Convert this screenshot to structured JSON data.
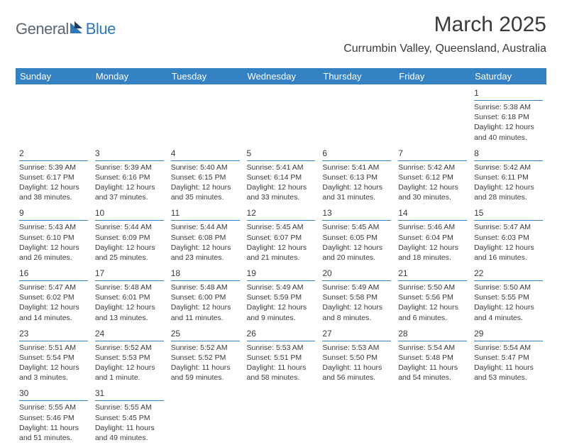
{
  "logo": {
    "part1": "General",
    "part2": "Blue"
  },
  "title": "March 2025",
  "subtitle": "Currumbin Valley, Queensland, Australia",
  "colors": {
    "header_bg": "#3481c4",
    "header_text": "#ffffff",
    "text": "#3a3a3a",
    "logo_gray": "#5b6770",
    "logo_blue": "#2f77bb",
    "rule": "#3481c4",
    "background": "#ffffff"
  },
  "typography": {
    "title_fontsize": 30,
    "subtitle_fontsize": 16,
    "header_fontsize": 13,
    "cell_fontsize": 10.5,
    "daynum_fontsize": 12
  },
  "weekdays": [
    "Sunday",
    "Monday",
    "Tuesday",
    "Wednesday",
    "Thursday",
    "Friday",
    "Saturday"
  ],
  "weeks": [
    [
      {
        "n": "",
        "sr": "",
        "ss": "",
        "dl": ""
      },
      {
        "n": "",
        "sr": "",
        "ss": "",
        "dl": ""
      },
      {
        "n": "",
        "sr": "",
        "ss": "",
        "dl": ""
      },
      {
        "n": "",
        "sr": "",
        "ss": "",
        "dl": ""
      },
      {
        "n": "",
        "sr": "",
        "ss": "",
        "dl": ""
      },
      {
        "n": "",
        "sr": "",
        "ss": "",
        "dl": ""
      },
      {
        "n": "1",
        "sr": "Sunrise: 5:38 AM",
        "ss": "Sunset: 6:18 PM",
        "dl": "Daylight: 12 hours and 40 minutes."
      }
    ],
    [
      {
        "n": "2",
        "sr": "Sunrise: 5:39 AM",
        "ss": "Sunset: 6:17 PM",
        "dl": "Daylight: 12 hours and 38 minutes."
      },
      {
        "n": "3",
        "sr": "Sunrise: 5:39 AM",
        "ss": "Sunset: 6:16 PM",
        "dl": "Daylight: 12 hours and 37 minutes."
      },
      {
        "n": "4",
        "sr": "Sunrise: 5:40 AM",
        "ss": "Sunset: 6:15 PM",
        "dl": "Daylight: 12 hours and 35 minutes."
      },
      {
        "n": "5",
        "sr": "Sunrise: 5:41 AM",
        "ss": "Sunset: 6:14 PM",
        "dl": "Daylight: 12 hours and 33 minutes."
      },
      {
        "n": "6",
        "sr": "Sunrise: 5:41 AM",
        "ss": "Sunset: 6:13 PM",
        "dl": "Daylight: 12 hours and 31 minutes."
      },
      {
        "n": "7",
        "sr": "Sunrise: 5:42 AM",
        "ss": "Sunset: 6:12 PM",
        "dl": "Daylight: 12 hours and 30 minutes."
      },
      {
        "n": "8",
        "sr": "Sunrise: 5:42 AM",
        "ss": "Sunset: 6:11 PM",
        "dl": "Daylight: 12 hours and 28 minutes."
      }
    ],
    [
      {
        "n": "9",
        "sr": "Sunrise: 5:43 AM",
        "ss": "Sunset: 6:10 PM",
        "dl": "Daylight: 12 hours and 26 minutes."
      },
      {
        "n": "10",
        "sr": "Sunrise: 5:44 AM",
        "ss": "Sunset: 6:09 PM",
        "dl": "Daylight: 12 hours and 25 minutes."
      },
      {
        "n": "11",
        "sr": "Sunrise: 5:44 AM",
        "ss": "Sunset: 6:08 PM",
        "dl": "Daylight: 12 hours and 23 minutes."
      },
      {
        "n": "12",
        "sr": "Sunrise: 5:45 AM",
        "ss": "Sunset: 6:07 PM",
        "dl": "Daylight: 12 hours and 21 minutes."
      },
      {
        "n": "13",
        "sr": "Sunrise: 5:45 AM",
        "ss": "Sunset: 6:05 PM",
        "dl": "Daylight: 12 hours and 20 minutes."
      },
      {
        "n": "14",
        "sr": "Sunrise: 5:46 AM",
        "ss": "Sunset: 6:04 PM",
        "dl": "Daylight: 12 hours and 18 minutes."
      },
      {
        "n": "15",
        "sr": "Sunrise: 5:47 AM",
        "ss": "Sunset: 6:03 PM",
        "dl": "Daylight: 12 hours and 16 minutes."
      }
    ],
    [
      {
        "n": "16",
        "sr": "Sunrise: 5:47 AM",
        "ss": "Sunset: 6:02 PM",
        "dl": "Daylight: 12 hours and 14 minutes."
      },
      {
        "n": "17",
        "sr": "Sunrise: 5:48 AM",
        "ss": "Sunset: 6:01 PM",
        "dl": "Daylight: 12 hours and 13 minutes."
      },
      {
        "n": "18",
        "sr": "Sunrise: 5:48 AM",
        "ss": "Sunset: 6:00 PM",
        "dl": "Daylight: 12 hours and 11 minutes."
      },
      {
        "n": "19",
        "sr": "Sunrise: 5:49 AM",
        "ss": "Sunset: 5:59 PM",
        "dl": "Daylight: 12 hours and 9 minutes."
      },
      {
        "n": "20",
        "sr": "Sunrise: 5:49 AM",
        "ss": "Sunset: 5:58 PM",
        "dl": "Daylight: 12 hours and 8 minutes."
      },
      {
        "n": "21",
        "sr": "Sunrise: 5:50 AM",
        "ss": "Sunset: 5:56 PM",
        "dl": "Daylight: 12 hours and 6 minutes."
      },
      {
        "n": "22",
        "sr": "Sunrise: 5:50 AM",
        "ss": "Sunset: 5:55 PM",
        "dl": "Daylight: 12 hours and 4 minutes."
      }
    ],
    [
      {
        "n": "23",
        "sr": "Sunrise: 5:51 AM",
        "ss": "Sunset: 5:54 PM",
        "dl": "Daylight: 12 hours and 3 minutes."
      },
      {
        "n": "24",
        "sr": "Sunrise: 5:52 AM",
        "ss": "Sunset: 5:53 PM",
        "dl": "Daylight: 12 hours and 1 minute."
      },
      {
        "n": "25",
        "sr": "Sunrise: 5:52 AM",
        "ss": "Sunset: 5:52 PM",
        "dl": "Daylight: 11 hours and 59 minutes."
      },
      {
        "n": "26",
        "sr": "Sunrise: 5:53 AM",
        "ss": "Sunset: 5:51 PM",
        "dl": "Daylight: 11 hours and 58 minutes."
      },
      {
        "n": "27",
        "sr": "Sunrise: 5:53 AM",
        "ss": "Sunset: 5:50 PM",
        "dl": "Daylight: 11 hours and 56 minutes."
      },
      {
        "n": "28",
        "sr": "Sunrise: 5:54 AM",
        "ss": "Sunset: 5:48 PM",
        "dl": "Daylight: 11 hours and 54 minutes."
      },
      {
        "n": "29",
        "sr": "Sunrise: 5:54 AM",
        "ss": "Sunset: 5:47 PM",
        "dl": "Daylight: 11 hours and 53 minutes."
      }
    ],
    [
      {
        "n": "30",
        "sr": "Sunrise: 5:55 AM",
        "ss": "Sunset: 5:46 PM",
        "dl": "Daylight: 11 hours and 51 minutes."
      },
      {
        "n": "31",
        "sr": "Sunrise: 5:55 AM",
        "ss": "Sunset: 5:45 PM",
        "dl": "Daylight: 11 hours and 49 minutes."
      },
      {
        "n": "",
        "sr": "",
        "ss": "",
        "dl": ""
      },
      {
        "n": "",
        "sr": "",
        "ss": "",
        "dl": ""
      },
      {
        "n": "",
        "sr": "",
        "ss": "",
        "dl": ""
      },
      {
        "n": "",
        "sr": "",
        "ss": "",
        "dl": ""
      },
      {
        "n": "",
        "sr": "",
        "ss": "",
        "dl": ""
      }
    ]
  ]
}
